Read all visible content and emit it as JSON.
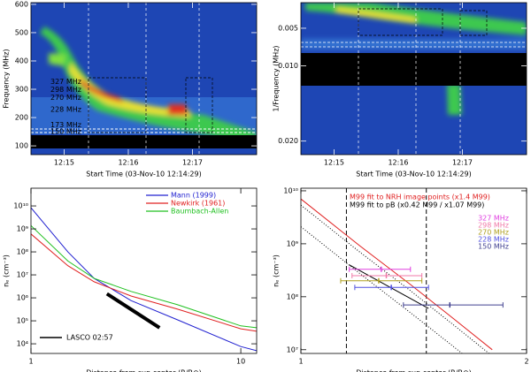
{
  "chart_data": [
    {
      "type": "spectrogram",
      "xlabel": "Start Time (03-Nov-10 12:14:29)",
      "ylabel": "Frequency (MHz)",
      "xlim": [
        869,
        1080
      ],
      "xticks": [
        {
          "value": 900,
          "label": "12:15"
        },
        {
          "value": 960,
          "label": "12:16"
        },
        {
          "value": 1020,
          "label": "12:17"
        }
      ],
      "ylim": [
        69,
        606
      ],
      "yticks": [
        100,
        200,
        300,
        400,
        500,
        600
      ],
      "annotations": [
        {
          "text": "327 MHz",
          "y": 327
        },
        {
          "text": "298 MHz",
          "y": 298
        },
        {
          "text": "270 MHz",
          "y": 270
        },
        {
          "text": "228 MHz",
          "y": 228
        },
        {
          "text": "173 MHz",
          "y": 173
        },
        {
          "text": "150 MHz",
          "y": 150
        }
      ]
    },
    {
      "type": "spectrogram",
      "xlabel": "Start Time (03-Nov-10 12:14:29)",
      "ylabel": "1/Frequency (MHz)",
      "xlim": [
        869,
        1080
      ],
      "xticks": [
        {
          "value": 900,
          "label": "12:15"
        },
        {
          "value": 960,
          "label": "12:16"
        },
        {
          "value": 1020,
          "label": "12:17"
        }
      ],
      "ylim": [
        0.0218,
        0.0016
      ],
      "yticks": [
        0.005,
        {
          "value": 0.01,
          "label": "0.010"
        },
        {
          "value": 0.02,
          "label": "0.020"
        }
      ]
    },
    {
      "type": "line",
      "xlabel": "Distance from sun center (R/R⊙)",
      "ylabel": "nₑ (cm⁻³)",
      "xscale": "log",
      "yscale": "log",
      "xlim": [
        1,
        11.9
      ],
      "xticks": [
        1,
        10
      ],
      "ylim": [
        3800,
        59000000000
      ],
      "yticks": [
        {
          "value": 10000,
          "label": "10⁴"
        },
        {
          "value": 100000,
          "label": "10⁵"
        },
        {
          "value": 1000000,
          "label": "10⁶"
        },
        {
          "value": 10000000,
          "label": "10⁷"
        },
        {
          "value": 100000000,
          "label": "10⁸"
        },
        {
          "value": 1000000000,
          "label": "10⁹"
        },
        {
          "value": 10000000000,
          "label": "10¹⁰"
        }
      ],
      "legend": "upper right",
      "series": [
        {
          "name": "Mann (1999)",
          "color": "#2020d0",
          "x": [
            1,
            1.5,
            2,
            3,
            5,
            10,
            11.9
          ],
          "values": [
            8300000000,
            100000000,
            7000000,
            760000,
            110000,
            7600,
            5000
          ]
        },
        {
          "name": "Newkirk (1961)",
          "color": "#e02020",
          "x": [
            1,
            1.5,
            2,
            3,
            5,
            10,
            11.9
          ],
          "values": [
            600000000,
            25000000,
            5000000,
            1200000,
            320000,
            45000,
            35000
          ]
        },
        {
          "name": "Baumbach-Allen",
          "color": "#20c020",
          "x": [
            1,
            1.5,
            2,
            3,
            5,
            10,
            11.9
          ],
          "values": [
            1400000000,
            40000000,
            7000000,
            1900000,
            500000,
            60000,
            50000
          ]
        },
        {
          "name": "LASCO 02:57",
          "color": "#000000",
          "width": 4,
          "legend": "lower left",
          "x": [
            2.3,
            4.1
          ],
          "values": [
            1500000,
            50000
          ]
        }
      ]
    },
    {
      "type": "line",
      "xlabel": "Distance from sun center (R/R⊙)",
      "ylabel": "nₑ (cm⁻³)",
      "xscale": "log",
      "yscale": "log",
      "xlim": [
        1,
        2
      ],
      "xticks": [
        1,
        2
      ],
      "ylim": [
        8500000,
        11200000000
      ],
      "yticks": [
        {
          "value": 10000000,
          "label": "10⁷"
        },
        {
          "value": 100000000,
          "label": "10⁸"
        },
        {
          "value": 1000000000,
          "label": "10⁹"
        },
        {
          "value": 10000000000,
          "label": "10¹⁰"
        }
      ],
      "vlines": [
        1.15,
        1.47
      ],
      "legend": "upper right",
      "series": [
        {
          "name": "M99 fit to NRH image points (x1.4 M99)",
          "color": "#e02020",
          "x": [
            1,
            1.2,
            1.4,
            1.6,
            1.8
          ],
          "values": [
            7000000000,
            900000000,
            170000000,
            38000000,
            10000000
          ]
        },
        {
          "name": "M99 fit to pB (x0.42 M99 / x1.07 M99)",
          "color": "#000000",
          "x": [
            1.16,
            1.48
          ],
          "values": [
            400000000,
            60000000
          ]
        },
        {
          "color": "#000000",
          "style": "dotted",
          "x": [
            1,
            1.2,
            1.4,
            1.6,
            1.8
          ],
          "values": [
            5350000000,
            685000000,
            130000000,
            29000000,
            7600000
          ]
        },
        {
          "color": "#000000",
          "style": "dotted",
          "x": [
            1,
            1.2,
            1.4,
            1.6,
            1.8
          ],
          "values": [
            2100000000,
            270000000,
            50000000,
            11300000,
            3000000
          ]
        },
        {
          "name": "327 MHz",
          "color": "#e040e0",
          "style": "errorbar",
          "x": [
            1.28
          ],
          "values": [
            330000000
          ],
          "xrange": [
            [
              1.16,
              1.4
            ]
          ]
        },
        {
          "name": "298 MHz",
          "color": "#f07aa8",
          "style": "errorbar",
          "x": [
            1.3
          ],
          "values": [
            250000000
          ],
          "xrange": [
            [
              1.17,
              1.45
            ]
          ]
        },
        {
          "name": "270 MHz",
          "color": "#b0a020",
          "style": "errorbar",
          "x": [
            1.27
          ],
          "values": [
            200000000
          ],
          "xrange": [
            [
              1.13,
              1.45
            ]
          ]
        },
        {
          "name": "228 MHz",
          "color": "#5050e0",
          "style": "errorbar",
          "x": [
            1.32
          ],
          "values": [
            150000000
          ],
          "xrange": [
            [
              1.18,
              1.48
            ]
          ]
        },
        {
          "name": "150 MHz",
          "color": "#404090",
          "style": "errorbar",
          "x": [
            1.58
          ],
          "values": [
            70000000
          ],
          "xrange": [
            [
              1.37,
              1.86
            ]
          ]
        }
      ]
    }
  ]
}
